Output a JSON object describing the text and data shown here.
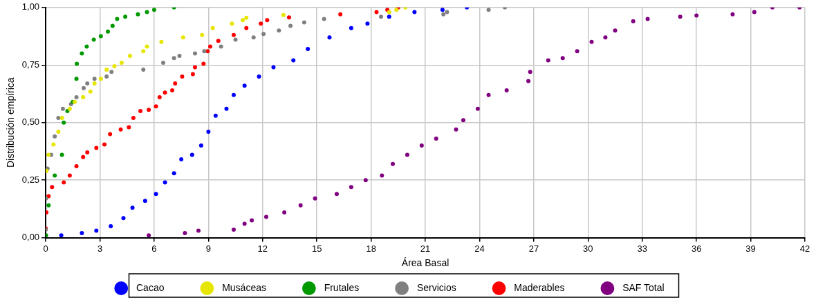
{
  "chart_data": {
    "type": "scatter",
    "xlabel": "Área Basal",
    "ylabel": "Distribución empírica",
    "xlim": [
      0,
      42
    ],
    "xticks": [
      0,
      3,
      6,
      9,
      12,
      15,
      18,
      21,
      24,
      27,
      30,
      33,
      36,
      39,
      42
    ],
    "ylim": [
      0,
      1
    ],
    "yticks": [
      {
        "value": 0,
        "label": "0,00"
      },
      {
        "value": 0.25,
        "label": "0,25"
      },
      {
        "value": 0.5,
        "label": "0,50"
      },
      {
        "value": 0.75,
        "label": "0,75"
      },
      {
        "value": 1,
        "label": "1,00"
      }
    ],
    "grid": true,
    "legend": "bottom",
    "marker": "circle",
    "series": [
      {
        "name": "Cacao",
        "color": "#0000ff",
        "x": [
          0.86,
          2.0,
          2.8,
          3.6,
          4.3,
          4.8,
          5.5,
          6.1,
          6.6,
          7.1,
          7.5,
          8.1,
          8.6,
          9.0,
          9.4,
          10.0,
          10.4,
          11.0,
          11.8,
          12.6,
          13.7,
          14.5,
          15.7,
          16.9,
          17.8,
          19.0,
          20.4,
          21.95,
          23.3
        ],
        "values": [
          0.01,
          0.02,
          0.03,
          0.05,
          0.085,
          0.13,
          0.16,
          0.19,
          0.24,
          0.28,
          0.34,
          0.36,
          0.4,
          0.46,
          0.53,
          0.56,
          0.62,
          0.66,
          0.7,
          0.74,
          0.77,
          0.82,
          0.87,
          0.91,
          0.93,
          0.96,
          0.98,
          0.99,
          1.0
        ]
      },
      {
        "name": "Musáceas",
        "color": "#e6e600",
        "x": [
          0.05,
          0.16,
          0.43,
          0.7,
          0.9,
          1.33,
          1.6,
          2.07,
          2.47,
          2.7,
          3.05,
          3.37,
          3.8,
          4.2,
          4.66,
          5.4,
          5.6,
          6.4,
          7.6,
          8.65,
          9.24,
          10.3,
          10.9,
          11.1,
          13.15,
          19.0,
          19.4,
          19.9
        ],
        "values": [
          0.29,
          0.36,
          0.405,
          0.46,
          0.52,
          0.56,
          0.59,
          0.61,
          0.635,
          0.67,
          0.69,
          0.73,
          0.745,
          0.76,
          0.79,
          0.81,
          0.83,
          0.85,
          0.87,
          0.88,
          0.91,
          0.93,
          0.945,
          0.955,
          0.967,
          0.98,
          0.99,
          1.0
        ]
      },
      {
        "name": "Frutales",
        "color": "#009900",
        "x": [
          0.02,
          0.16,
          0.5,
          0.9,
          1.0,
          1.2,
          1.5,
          1.7,
          1.72,
          2.0,
          2.27,
          2.66,
          3.05,
          3.44,
          3.7,
          3.95,
          4.4,
          5.1,
          5.6,
          6.0,
          7.1
        ],
        "values": [
          0.01,
          0.14,
          0.27,
          0.36,
          0.5,
          0.55,
          0.59,
          0.69,
          0.755,
          0.8,
          0.83,
          0.86,
          0.875,
          0.895,
          0.92,
          0.95,
          0.96,
          0.97,
          0.98,
          0.99,
          1.0
        ]
      },
      {
        "name": "Servicios",
        "color": "#808080",
        "x": [
          0.0,
          0.02,
          0.1,
          0.3,
          0.5,
          0.7,
          0.95,
          1.4,
          1.7,
          2.1,
          2.3,
          2.7,
          3.37,
          3.64,
          5.4,
          6.5,
          7.1,
          7.4,
          8.26,
          8.77,
          9.7,
          10.5,
          11.5,
          12.05,
          12.9,
          13.54,
          14.3,
          15.4,
          18.55,
          22.0,
          22.2,
          24.5,
          25.4
        ],
        "values": [
          0.035,
          0.17,
          0.3,
          0.36,
          0.44,
          0.52,
          0.56,
          0.58,
          0.61,
          0.65,
          0.67,
          0.69,
          0.7,
          0.72,
          0.73,
          0.76,
          0.78,
          0.79,
          0.8,
          0.81,
          0.83,
          0.86,
          0.87,
          0.885,
          0.9,
          0.92,
          0.935,
          0.95,
          0.96,
          0.97,
          0.98,
          0.99,
          1.0
        ]
      },
      {
        "name": "Maderables",
        "color": "#ff0000",
        "x": [
          0.0,
          0.04,
          0.16,
          0.35,
          1.0,
          1.33,
          1.7,
          2.07,
          2.3,
          2.8,
          3.25,
          3.56,
          4.15,
          4.6,
          4.85,
          5.24,
          5.7,
          6.1,
          6.3,
          6.6,
          7.0,
          7.16,
          7.55,
          8.14,
          8.26,
          8.73,
          8.96,
          9.1,
          9.55,
          10.4,
          11.1,
          11.9,
          12.25,
          13.46,
          16.3,
          18.3,
          18.9,
          19.5
        ],
        "values": [
          0.04,
          0.11,
          0.18,
          0.22,
          0.24,
          0.27,
          0.31,
          0.35,
          0.37,
          0.39,
          0.405,
          0.45,
          0.47,
          0.48,
          0.52,
          0.55,
          0.555,
          0.57,
          0.61,
          0.63,
          0.64,
          0.67,
          0.7,
          0.71,
          0.74,
          0.755,
          0.81,
          0.83,
          0.855,
          0.88,
          0.91,
          0.93,
          0.945,
          0.957,
          0.97,
          0.98,
          0.99,
          1.0
        ]
      },
      {
        "name": "SAF Total",
        "color": "#800080",
        "x": [
          5.7,
          7.7,
          8.45,
          10.4,
          11.0,
          11.4,
          12.2,
          13.2,
          14.1,
          14.9,
          16.1,
          16.9,
          17.7,
          18.6,
          19.2,
          20.0,
          20.8,
          21.6,
          22.7,
          23.1,
          23.9,
          24.5,
          25.5,
          26.7,
          26.8,
          27.8,
          28.6,
          29.4,
          30.2,
          30.96,
          31.5,
          32.5,
          33.3,
          35.1,
          36.0,
          38.0,
          39.2,
          40.2,
          41.7
        ],
        "values": [
          0.01,
          0.02,
          0.03,
          0.035,
          0.06,
          0.075,
          0.09,
          0.11,
          0.14,
          0.17,
          0.19,
          0.22,
          0.25,
          0.27,
          0.32,
          0.36,
          0.4,
          0.43,
          0.47,
          0.51,
          0.56,
          0.62,
          0.64,
          0.68,
          0.72,
          0.77,
          0.78,
          0.81,
          0.85,
          0.87,
          0.9,
          0.94,
          0.95,
          0.96,
          0.965,
          0.97,
          0.98,
          1.0,
          1.0
        ]
      }
    ]
  }
}
